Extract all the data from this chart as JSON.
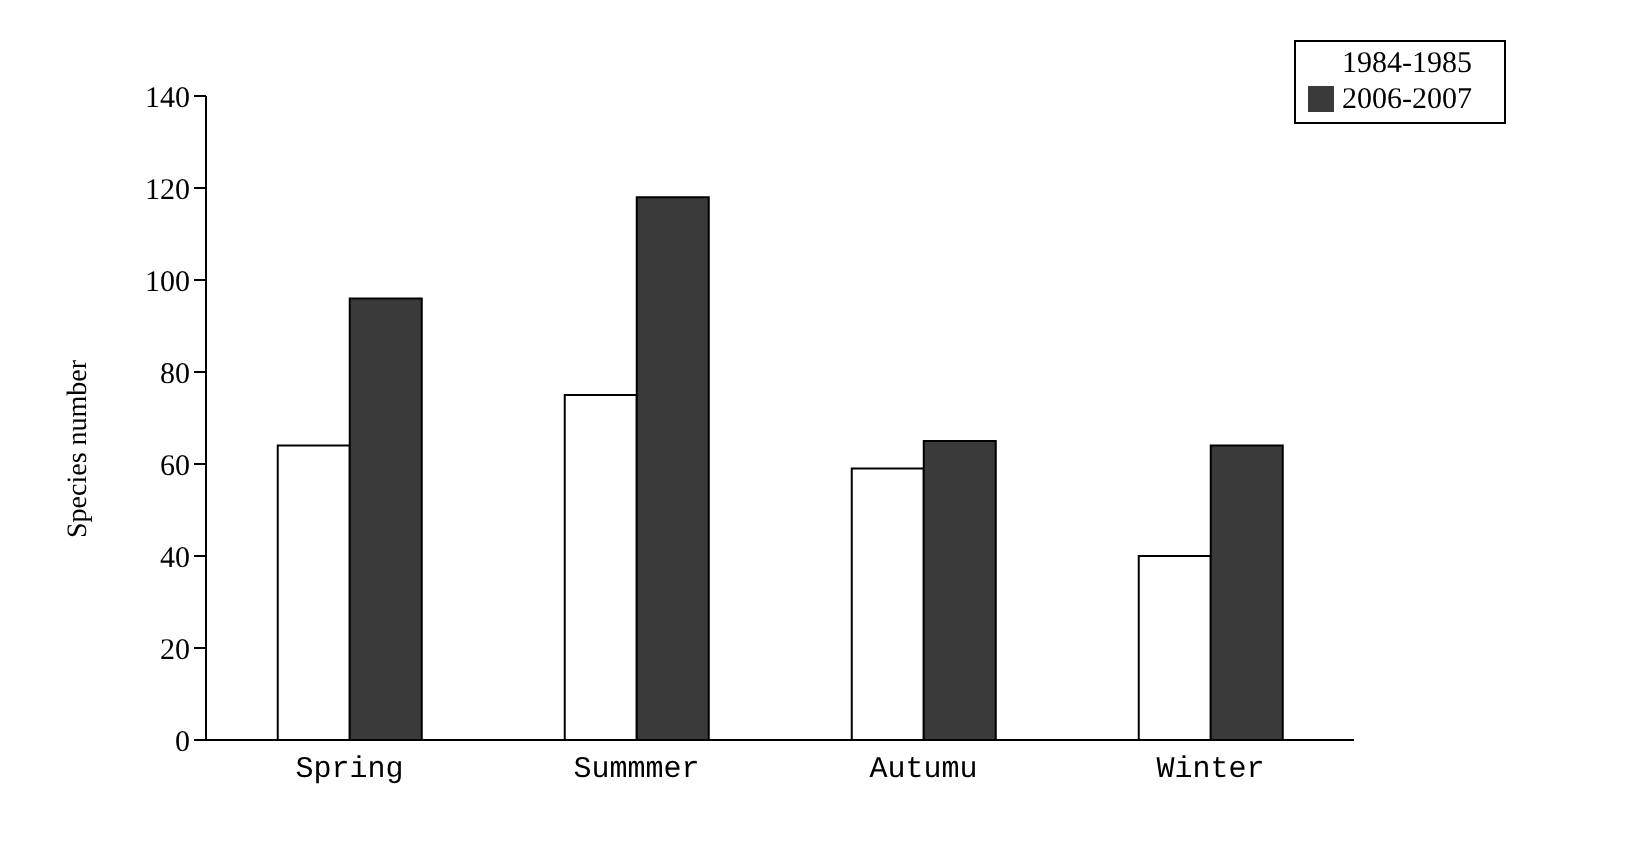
{
  "chart_data": {
    "type": "bar",
    "ylabel": "Species number",
    "categories": [
      "Spring",
      "Summmer",
      "Autumu",
      "Winter"
    ],
    "series": [
      {
        "name": "1984-1985",
        "color": "#ffffff",
        "values": [
          64,
          75,
          59,
          40
        ]
      },
      {
        "name": "2006-2007",
        "color": "#3a3a3a",
        "values": [
          96,
          118,
          65,
          64
        ]
      }
    ],
    "ylim": [
      0,
      140
    ],
    "yticks": [
      0,
      20,
      40,
      60,
      80,
      100,
      120,
      140
    ],
    "grid": false,
    "legend": "top right"
  }
}
